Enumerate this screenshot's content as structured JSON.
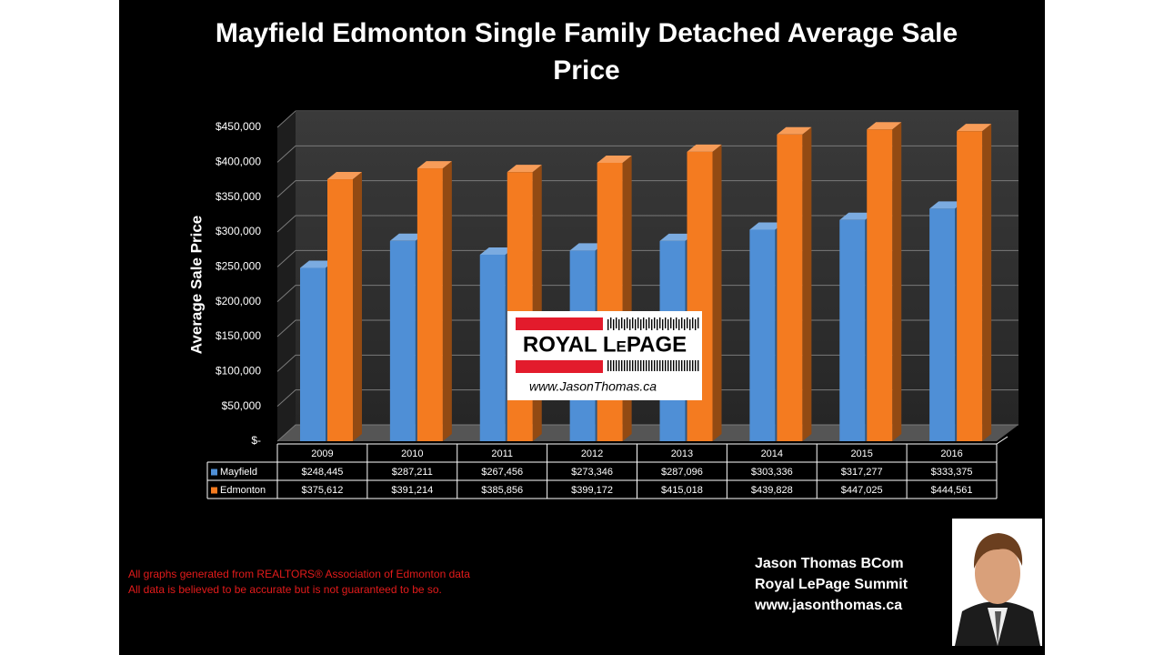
{
  "chart_data": {
    "type": "bar3d",
    "title": "Mayfield Edmonton Single Family Detached Average Sale Price",
    "ylabel": "Average Sale Price",
    "categories": [
      "2009",
      "2010",
      "2011",
      "2012",
      "2013",
      "2014",
      "2015",
      "2016"
    ],
    "series": [
      {
        "name": "Mayfield",
        "color": "#4f8fd6",
        "values": [
          248445,
          287211,
          267456,
          273346,
          287096,
          303336,
          317277,
          333375
        ],
        "value_labels": [
          "$248,445",
          "$287,211",
          "$267,456",
          "$273,346",
          "$287,096",
          "$303,336",
          "$317,277",
          "$333,375"
        ]
      },
      {
        "name": "Edmonton",
        "color": "#f47b20",
        "values": [
          375612,
          391214,
          385856,
          399172,
          415018,
          439828,
          447025,
          444561
        ],
        "value_labels": [
          "$375,612",
          "$391,214",
          "$385,856",
          "$399,172",
          "$415,018",
          "$439,828",
          "$447,025",
          "$444,561"
        ]
      }
    ],
    "ylim": [
      0,
      450000
    ],
    "yticks": [
      {
        "value": 0,
        "label": "$-"
      },
      {
        "value": 50000,
        "label": "$50,000"
      },
      {
        "value": 100000,
        "label": "$100,000"
      },
      {
        "value": 150000,
        "label": "$150,000"
      },
      {
        "value": 200000,
        "label": "$200,000"
      },
      {
        "value": 250000,
        "label": "$250,000"
      },
      {
        "value": 300000,
        "label": "$300,000"
      },
      {
        "value": 350000,
        "label": "$350,000"
      },
      {
        "value": 400000,
        "label": "$400,000"
      },
      {
        "value": 450000,
        "label": "$450,000"
      }
    ],
    "grid": true,
    "data_table": true
  },
  "logo": {
    "brand": "ROYAL LePAGE",
    "url": "www.JasonThomas.ca"
  },
  "footnotes": [
    "All graphs generated from REALTORS® Association of Edmonton data",
    "All data is believed to be accurate but is not guaranteed to be so."
  ],
  "contact": [
    "Jason Thomas BCom",
    "Royal LePage Summit",
    "www.jasonthomas.ca"
  ]
}
